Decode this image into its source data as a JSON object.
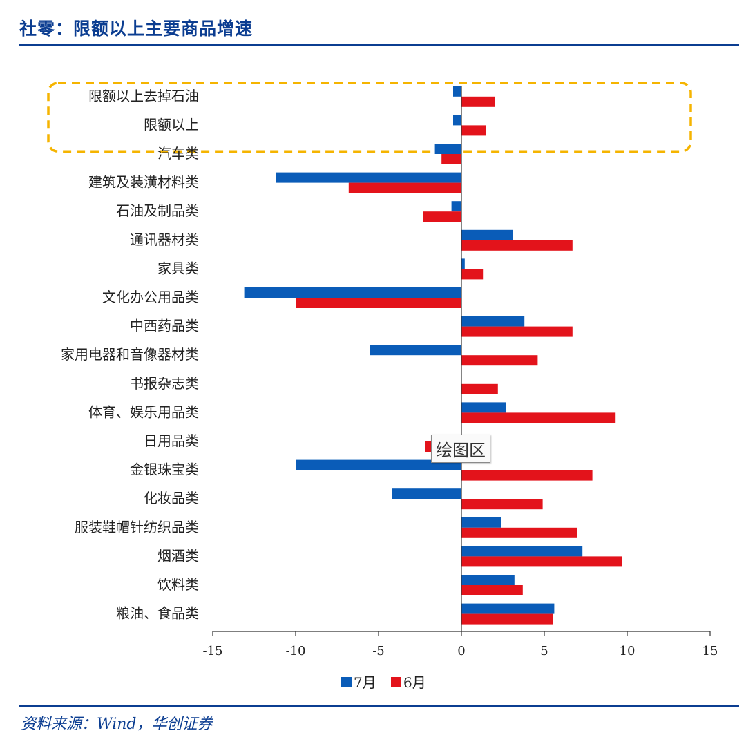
{
  "header": {
    "title": "社零：限额以上主要商品增速"
  },
  "footer": {
    "source": "资料来源：Wind，华创证券"
  },
  "tooltip": {
    "text": "绘图区"
  },
  "colors": {
    "series_7": "#0a5cb8",
    "series_6": "#e3131b",
    "highlight": "#f5b400",
    "brand": "#0b3d91"
  },
  "chart_data": {
    "type": "bar",
    "orientation": "horizontal",
    "categories": [
      "限额以上去掉石油",
      "限额以上",
      "汽车类",
      "建筑及装潢材料类",
      "石油及制品类",
      "通讯器材类",
      "家具类",
      "文化办公用品类",
      "中西药品类",
      "家用电器和音像器材类",
      "书报杂志类",
      "体育、娱乐用品类",
      "日用品类",
      "金银珠宝类",
      "化妆品类",
      "服装鞋帽针纺织品类",
      "烟酒类",
      "饮料类",
      "粮油、食品类"
    ],
    "series": [
      {
        "name": "7月",
        "values": [
          -0.5,
          -0.5,
          -1.6,
          -11.2,
          -0.6,
          3.1,
          0.2,
          -13.1,
          3.8,
          -5.5,
          0.0,
          2.7,
          0.0,
          -10.0,
          -4.2,
          2.4,
          7.3,
          3.2,
          5.6
        ]
      },
      {
        "name": "6月",
        "values": [
          2.0,
          1.5,
          -1.2,
          -6.8,
          -2.3,
          6.7,
          1.3,
          -10.0,
          6.7,
          4.6,
          2.2,
          9.3,
          -2.2,
          7.9,
          4.9,
          7.0,
          9.7,
          3.7,
          5.5
        ]
      }
    ],
    "xlim": [
      -15,
      15
    ],
    "xticks": [
      "-15",
      "-10",
      "-5",
      "0",
      "5",
      "10",
      "15"
    ],
    "grid": false,
    "legend_position": "bottom",
    "highlight_group": [
      0,
      1
    ]
  }
}
